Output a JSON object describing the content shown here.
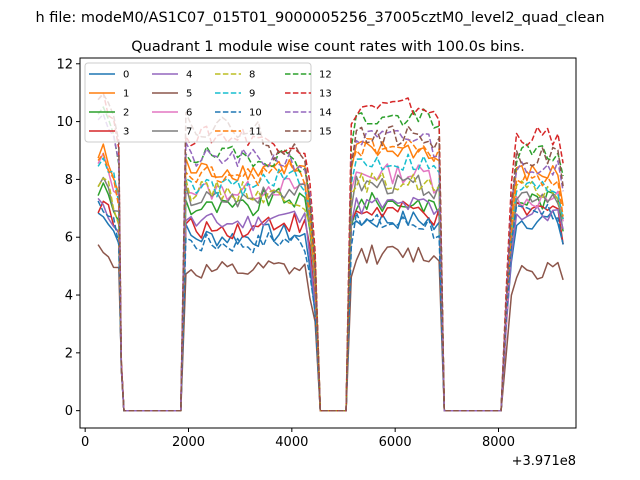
{
  "suptitle": "h file: modeM0/AS1C07_015T01_9000005256_37005cztM0_level2_quad_clean",
  "chart_data": {
    "type": "line",
    "title": "Quadrant 1 module wise count rates with 100.0s bins.",
    "xlabel": "",
    "ylabel": "",
    "x_offset_label": "+3.971e8",
    "xlim": [
      -100,
      9500
    ],
    "ylim": [
      -0.6,
      12.2
    ],
    "grid": false,
    "legend_position": "top-left",
    "x_ticks": [
      {
        "value": 0,
        "label": "0"
      },
      {
        "value": 2000,
        "label": "2000"
      },
      {
        "value": 4000,
        "label": "4000"
      },
      {
        "value": 6000,
        "label": "6000"
      },
      {
        "value": 8000,
        "label": "8000"
      }
    ],
    "y_ticks": [
      {
        "value": 0,
        "label": "0"
      },
      {
        "value": 2,
        "label": "2"
      },
      {
        "value": 4,
        "label": "4"
      },
      {
        "value": 6,
        "label": "6"
      },
      {
        "value": 8,
        "label": "8"
      },
      {
        "value": 10,
        "label": "10"
      },
      {
        "value": 12,
        "label": "12"
      }
    ],
    "series_levels": [
      {
        "name": "0",
        "values": [
          6.8,
          6.0,
          6.0,
          6.6,
          6.6
        ]
      },
      {
        "name": "1",
        "values": [
          8.8,
          8.3,
          8.3,
          9.0,
          8.2
        ]
      },
      {
        "name": "2",
        "values": [
          7.6,
          7.0,
          7.2,
          7.2,
          7.3
        ]
      },
      {
        "name": "3",
        "values": [
          7.1,
          6.3,
          6.4,
          6.9,
          6.9
        ]
      },
      {
        "name": "4",
        "values": [
          7.1,
          6.5,
          6.6,
          7.1,
          6.8
        ]
      },
      {
        "name": "5",
        "values": [
          5.6,
          4.8,
          4.8,
          5.4,
          4.9
        ]
      },
      {
        "name": "6",
        "values": [
          8.5,
          7.6,
          7.6,
          8.2,
          7.3
        ]
      },
      {
        "name": "7",
        "values": [
          7.8,
          7.3,
          7.5,
          7.8,
          7.5
        ]
      },
      {
        "name": "8",
        "values": [
          7.9,
          7.6,
          7.3,
          7.9,
          7.6
        ]
      },
      {
        "name": "9",
        "values": [
          8.7,
          7.7,
          7.9,
          8.6,
          7.7
        ]
      },
      {
        "name": "10",
        "values": [
          7.0,
          5.8,
          5.8,
          6.5,
          6.8
        ]
      },
      {
        "name": "11",
        "values": [
          8.5,
          8.1,
          8.1,
          9.1,
          8.0
        ]
      },
      {
        "name": "12",
        "values": [
          10.2,
          8.8,
          8.6,
          10.1,
          8.9
        ]
      },
      {
        "name": "13",
        "values": [
          10.8,
          9.5,
          9.1,
          10.5,
          9.5
        ]
      },
      {
        "name": "14",
        "values": [
          10.2,
          8.7,
          8.5,
          9.4,
          8.5
        ]
      },
      {
        "name": "15",
        "values": [
          11.0,
          9.8,
          8.8,
          9.5,
          8.8
        ]
      }
    ],
    "segments": [
      [
        250,
        650
      ],
      [
        1950,
        4450
      ],
      [
        5150,
        6850
      ],
      [
        8150,
        9250
      ]
    ],
    "gaps": [
      [
        750,
        1850
      ],
      [
        4550,
        5050
      ],
      [
        6950,
        8050
      ]
    ]
  },
  "legend_entries": [
    {
      "label": "0",
      "color": "#1f77b4",
      "dashed": false
    },
    {
      "label": "1",
      "color": "#ff7f0e",
      "dashed": false
    },
    {
      "label": "2",
      "color": "#2ca02c",
      "dashed": false
    },
    {
      "label": "3",
      "color": "#d62728",
      "dashed": false
    },
    {
      "label": "4",
      "color": "#9467bd",
      "dashed": false
    },
    {
      "label": "5",
      "color": "#8c564b",
      "dashed": false
    },
    {
      "label": "6",
      "color": "#e377c2",
      "dashed": false
    },
    {
      "label": "7",
      "color": "#7f7f7f",
      "dashed": false
    },
    {
      "label": "8",
      "color": "#bcbd22",
      "dashed": true
    },
    {
      "label": "9",
      "color": "#17becf",
      "dashed": true
    },
    {
      "label": "10",
      "color": "#1f77b4",
      "dashed": true
    },
    {
      "label": "11",
      "color": "#ff7f0e",
      "dashed": true
    },
    {
      "label": "12",
      "color": "#2ca02c",
      "dashed": true
    },
    {
      "label": "13",
      "color": "#d62728",
      "dashed": true
    },
    {
      "label": "14",
      "color": "#9467bd",
      "dashed": true
    },
    {
      "label": "15",
      "color": "#8c564b",
      "dashed": true
    }
  ]
}
